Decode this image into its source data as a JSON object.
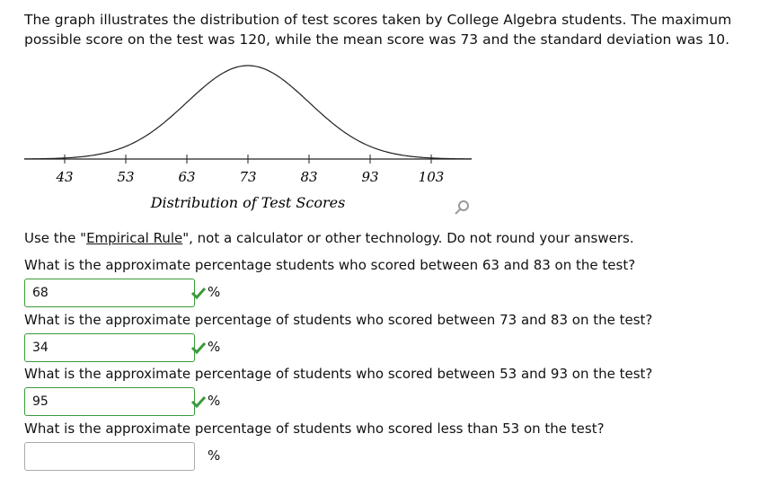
{
  "intro": "The graph illustrates the distribution of test scores taken by College Algebra students. The maximum possible score on the test was 120, while the mean score was 73 and the standard deviation was 10.",
  "graph": {
    "ticks": [
      43,
      53,
      63,
      73,
      83,
      93,
      103
    ],
    "axis_label": "Distribution of Test Scores"
  },
  "instruction": {
    "before": "Use the \"",
    "link": "Empirical Rule",
    "after": "\", not a calculator or other technology. Do not round your answers."
  },
  "questions": [
    {
      "text": "What is the approximate percentage students who scored between 63 and 83 on the test?",
      "answer": 68,
      "unit": "%"
    },
    {
      "text": "What is the approximate percentage of students who scored between 73 and 83 on the test?",
      "answer": 34,
      "unit": "%"
    },
    {
      "text": "What is the approximate percentage of students who scored between 53 and 93 on the test?",
      "answer": 95,
      "unit": "%"
    },
    {
      "text": "What is the approximate percentage of students who scored less than 53 on the test?",
      "unit": "%"
    }
  ]
}
